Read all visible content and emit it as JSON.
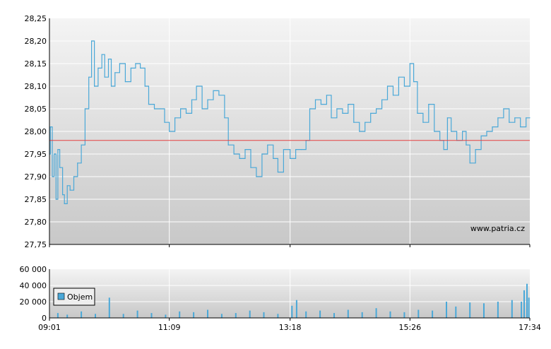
{
  "colors": {
    "price_line": "#4aa8d8",
    "reference_line": "#e34040",
    "volume_bar": "#4aa8d8",
    "grid": "#ffffff",
    "plot_top": "#f4f4f4",
    "plot_bottom": "#c8c8c8",
    "axis": "#000000"
  },
  "watermark": "www.patria.cz",
  "chart_data": [
    {
      "type": "line",
      "name": "price",
      "ylim": [
        27.75,
        28.25
      ],
      "y_ticks": [
        "28,25",
        "28,20",
        "28,15",
        "28,10",
        "28,05",
        "28,00",
        "27,95",
        "27,90",
        "27,85",
        "27,80",
        "27,75"
      ],
      "reference_value": 27.98,
      "x_ticks": [
        "09:01",
        "11:09",
        "13:18",
        "15:26",
        "17:34"
      ],
      "grid": true,
      "points": [
        [
          "09:01",
          27.95
        ],
        [
          "09:02",
          28.01
        ],
        [
          "09:04",
          27.9
        ],
        [
          "09:06",
          27.95
        ],
        [
          "09:08",
          27.85
        ],
        [
          "09:10",
          27.96
        ],
        [
          "09:12",
          27.92
        ],
        [
          "09:15",
          27.86
        ],
        [
          "09:17",
          27.84
        ],
        [
          "09:20",
          27.88
        ],
        [
          "09:23",
          27.87
        ],
        [
          "09:27",
          27.9
        ],
        [
          "09:31",
          27.93
        ],
        [
          "09:35",
          27.97
        ],
        [
          "09:39",
          28.05
        ],
        [
          "09:43",
          28.12
        ],
        [
          "09:46",
          28.2
        ],
        [
          "09:49",
          28.1
        ],
        [
          "09:53",
          28.14
        ],
        [
          "09:57",
          28.17
        ],
        [
          "10:00",
          28.12
        ],
        [
          "10:04",
          28.16
        ],
        [
          "10:07",
          28.1
        ],
        [
          "10:11",
          28.13
        ],
        [
          "10:16",
          28.15
        ],
        [
          "10:22",
          28.11
        ],
        [
          "10:28",
          28.14
        ],
        [
          "10:33",
          28.15
        ],
        [
          "10:38",
          28.14
        ],
        [
          "10:43",
          28.1
        ],
        [
          "10:47",
          28.06
        ],
        [
          "10:53",
          28.05
        ],
        [
          "10:59",
          28.05
        ],
        [
          "11:04",
          28.02
        ],
        [
          "11:09",
          28.0
        ],
        [
          "11:15",
          28.03
        ],
        [
          "11:21",
          28.05
        ],
        [
          "11:27",
          28.04
        ],
        [
          "11:33",
          28.07
        ],
        [
          "11:38",
          28.1
        ],
        [
          "11:44",
          28.05
        ],
        [
          "11:50",
          28.07
        ],
        [
          "11:56",
          28.09
        ],
        [
          "12:02",
          28.08
        ],
        [
          "12:08",
          28.03
        ],
        [
          "12:12",
          27.97
        ],
        [
          "12:18",
          27.95
        ],
        [
          "12:24",
          27.94
        ],
        [
          "12:30",
          27.96
        ],
        [
          "12:36",
          27.92
        ],
        [
          "12:42",
          27.9
        ],
        [
          "12:48",
          27.95
        ],
        [
          "12:54",
          27.97
        ],
        [
          "13:00",
          27.94
        ],
        [
          "13:05",
          27.91
        ],
        [
          "13:11",
          27.96
        ],
        [
          "13:18",
          27.94
        ],
        [
          "13:24",
          27.96
        ],
        [
          "13:30",
          27.96
        ],
        [
          "13:35",
          27.98
        ],
        [
          "13:39",
          28.05
        ],
        [
          "13:45",
          28.07
        ],
        [
          "13:51",
          28.06
        ],
        [
          "13:57",
          28.08
        ],
        [
          "14:02",
          28.03
        ],
        [
          "14:08",
          28.05
        ],
        [
          "14:14",
          28.04
        ],
        [
          "14:20",
          28.06
        ],
        [
          "14:26",
          28.02
        ],
        [
          "14:32",
          28.0
        ],
        [
          "14:38",
          28.02
        ],
        [
          "14:44",
          28.04
        ],
        [
          "14:50",
          28.05
        ],
        [
          "14:56",
          28.07
        ],
        [
          "15:02",
          28.1
        ],
        [
          "15:08",
          28.08
        ],
        [
          "15:14",
          28.12
        ],
        [
          "15:20",
          28.1
        ],
        [
          "15:26",
          28.15
        ],
        [
          "15:30",
          28.11
        ],
        [
          "15:34",
          28.04
        ],
        [
          "15:40",
          28.02
        ],
        [
          "15:46",
          28.06
        ],
        [
          "15:52",
          28.0
        ],
        [
          "15:58",
          27.98
        ],
        [
          "16:02",
          27.96
        ],
        [
          "16:06",
          28.03
        ],
        [
          "16:10",
          28.0
        ],
        [
          "16:16",
          27.98
        ],
        [
          "16:22",
          28.0
        ],
        [
          "16:26",
          27.97
        ],
        [
          "16:30",
          27.93
        ],
        [
          "16:36",
          27.96
        ],
        [
          "16:42",
          27.99
        ],
        [
          "16:48",
          28.0
        ],
        [
          "16:54",
          28.01
        ],
        [
          "17:00",
          28.03
        ],
        [
          "17:06",
          28.05
        ],
        [
          "17:12",
          28.02
        ],
        [
          "17:18",
          28.03
        ],
        [
          "17:24",
          28.01
        ],
        [
          "17:30",
          28.03
        ],
        [
          "17:34",
          28.03
        ]
      ]
    },
    {
      "type": "bar",
      "name": "volume",
      "legend": "Objem",
      "legend_position": "top-left",
      "ylim": [
        0,
        60000
      ],
      "y_ticks": [
        "60 000",
        "40 000",
        "20 000",
        "0"
      ],
      "x_ticks": [
        "09:01",
        "11:09",
        "13:18",
        "15:26",
        "17:34"
      ],
      "grid": true,
      "bars": [
        [
          "09:10",
          6000
        ],
        [
          "09:20",
          4000
        ],
        [
          "09:35",
          8000
        ],
        [
          "09:50",
          5000
        ],
        [
          "10:05",
          25000
        ],
        [
          "10:20",
          5000
        ],
        [
          "10:35",
          9000
        ],
        [
          "10:50",
          6000
        ],
        [
          "11:05",
          4000
        ],
        [
          "11:20",
          8000
        ],
        [
          "11:35",
          7000
        ],
        [
          "11:50",
          10000
        ],
        [
          "12:05",
          5000
        ],
        [
          "12:20",
          6000
        ],
        [
          "12:35",
          9000
        ],
        [
          "12:50",
          7000
        ],
        [
          "13:05",
          5000
        ],
        [
          "13:20",
          15000
        ],
        [
          "13:25",
          22000
        ],
        [
          "13:35",
          8000
        ],
        [
          "13:50",
          9000
        ],
        [
          "14:05",
          6000
        ],
        [
          "14:20",
          10000
        ],
        [
          "14:35",
          7000
        ],
        [
          "14:50",
          12000
        ],
        [
          "15:05",
          8000
        ],
        [
          "15:20",
          7000
        ],
        [
          "15:35",
          10000
        ],
        [
          "15:50",
          9000
        ],
        [
          "16:05",
          20000
        ],
        [
          "16:15",
          14000
        ],
        [
          "16:30",
          19000
        ],
        [
          "16:45",
          18000
        ],
        [
          "17:00",
          20000
        ],
        [
          "17:15",
          22000
        ],
        [
          "17:25",
          20000
        ],
        [
          "17:28",
          34000
        ],
        [
          "17:31",
          42000
        ],
        [
          "17:33",
          25000
        ]
      ]
    }
  ]
}
